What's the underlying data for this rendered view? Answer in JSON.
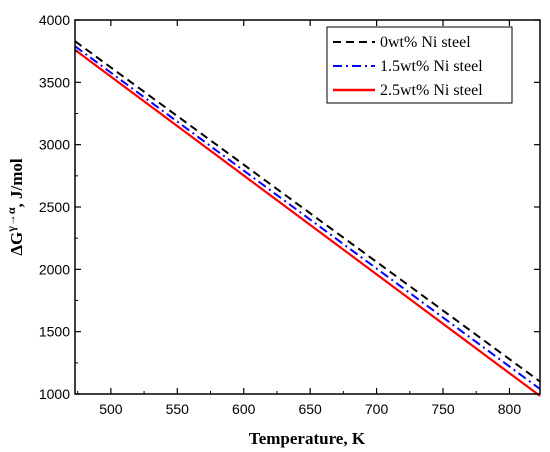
{
  "chart_data": {
    "type": "line",
    "title": "",
    "xlabel": "Temperature, K",
    "ylabel_parts": {
      "prefix": "ΔG",
      "superscript": "γ→α",
      "suffix": ", J/mol"
    },
    "xlim": [
      473,
      823
    ],
    "ylim": [
      1000,
      4000
    ],
    "xticks": [
      500,
      550,
      600,
      650,
      700,
      750,
      800
    ],
    "yticks": [
      1000,
      1500,
      2000,
      2500,
      3000,
      3500,
      4000
    ],
    "grid": false,
    "legend_position": "top-right",
    "series": [
      {
        "name": "0wt% Ni steel",
        "color": "#000000",
        "style": "dash",
        "x": [
          473,
          823
        ],
        "y": [
          3830,
          1100
        ]
      },
      {
        "name": "1.5wt% Ni steel",
        "color": "#0000ff",
        "style": "dashdot",
        "x": [
          473,
          823
        ],
        "y": [
          3790,
          1040
        ]
      },
      {
        "name": "2.5wt% Ni steel",
        "color": "#ff0000",
        "style": "solid",
        "x": [
          473,
          823
        ],
        "y": [
          3760,
          985
        ]
      }
    ]
  }
}
